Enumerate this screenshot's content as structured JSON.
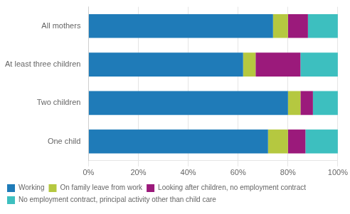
{
  "chart_data": {
    "type": "bar",
    "orientation": "horizontal",
    "stacked": true,
    "categories": [
      "All mothers",
      "At least three children",
      "Two children",
      "One child"
    ],
    "series": [
      {
        "name": "Working",
        "color": "#1f7bb8",
        "values": [
          74,
          62,
          80,
          72
        ]
      },
      {
        "name": "On family leave from work",
        "color": "#b5c840",
        "values": [
          6,
          5,
          5,
          8
        ]
      },
      {
        "name": "Looking after children, no employment contract",
        "color": "#9b1a7b",
        "values": [
          8,
          18,
          5,
          7
        ]
      },
      {
        "name": "No employment contract, principal activity other than child care",
        "color": "#3dbfbf",
        "values": [
          12,
          15,
          10,
          13
        ]
      }
    ],
    "xlim": [
      0,
      100
    ],
    "xticks": [
      {
        "value": 0,
        "label": "0%"
      },
      {
        "value": 20,
        "label": "20%"
      },
      {
        "value": 40,
        "label": "40%"
      },
      {
        "value": 60,
        "label": "60%"
      },
      {
        "value": 80,
        "label": "80%"
      },
      {
        "value": 100,
        "label": "100%"
      }
    ],
    "grid": true,
    "legend": "bottom"
  }
}
